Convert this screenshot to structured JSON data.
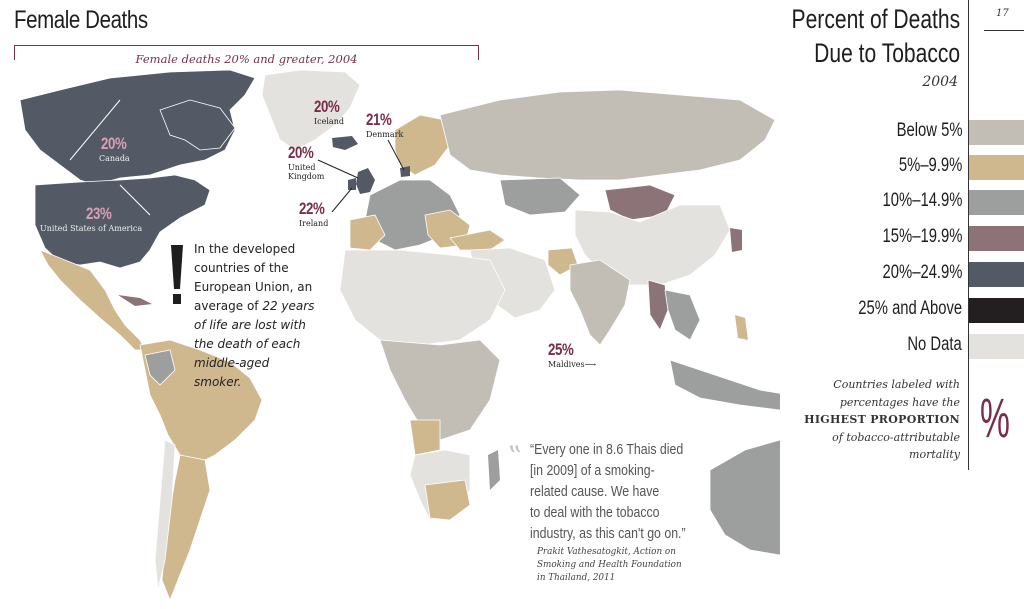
{
  "page": {
    "title": "Female Deaths",
    "subtitle": "Female deaths 20% and greater, 2004",
    "page_number": "17"
  },
  "legend": {
    "title_line1": "Percent of Deaths",
    "title_line2": "Due to Tobacco",
    "year": "2004",
    "items": [
      {
        "label": "Below 5%",
        "color": "#c2beb5"
      },
      {
        "label": "5%–9.9%",
        "color": "#cfb88e"
      },
      {
        "label": "10%–14.9%",
        "color": "#9d9f9f"
      },
      {
        "label": "15%–19.9%",
        "color": "#8b7377"
      },
      {
        "label": "20%–24.9%",
        "color": "#535a66"
      },
      {
        "label": "25% and Above",
        "color": "#231f20"
      },
      {
        "label": "No Data",
        "color": "#e4e2de"
      }
    ],
    "note_line1": "Countries labeled with",
    "note_line2": "percentages have the",
    "note_bold": "HIGHEST PROPORTION",
    "note_line3": "of tobacco-attributable",
    "note_line4": "mortality",
    "percent_glyph": "%"
  },
  "map_labels": [
    {
      "id": "canada",
      "pct": "20%",
      "name": "Canada",
      "pct_color": "#d9a0b3"
    },
    {
      "id": "usa",
      "pct": "23%",
      "name": "United States of America",
      "pct_color": "#d9a0b3"
    },
    {
      "id": "iceland",
      "pct": "20%",
      "name": "Iceland",
      "pct_color": "#7a2d4a"
    },
    {
      "id": "denmark",
      "pct": "21%",
      "name": "Denmark",
      "pct_color": "#7a2d4a"
    },
    {
      "id": "uk",
      "pct": "20%",
      "name": "United Kingdom",
      "pct_color": "#7a2d4a"
    },
    {
      "id": "ireland",
      "pct": "22%",
      "name": "Ireland",
      "pct_color": "#7a2d4a"
    },
    {
      "id": "maldives",
      "pct": "25%",
      "name": "Maldives",
      "pct_color": "#7a2d4a"
    }
  ],
  "note": {
    "line1": "In the developed",
    "line2": "countries of the",
    "line3": "European Union, an",
    "line4_plain": "average of ",
    "line4_italic": "22 years",
    "line5": "of life are lost with",
    "line6": "the death of each",
    "line7": "middle-aged smoker."
  },
  "quote": {
    "text_line1": "“Every one in 8.6 Thais died",
    "text_line2": "[in 2009] of a smoking-",
    "text_line3": "related cause. We have",
    "text_line4": "to deal with the tobacco",
    "text_line5": "industry, as this can't go on.”",
    "attr_line1": "Prakit Vathesatogkit, Action on",
    "attr_line2": "Smoking and Health Foundation",
    "attr_line3": "in Thailand, 2011"
  }
}
